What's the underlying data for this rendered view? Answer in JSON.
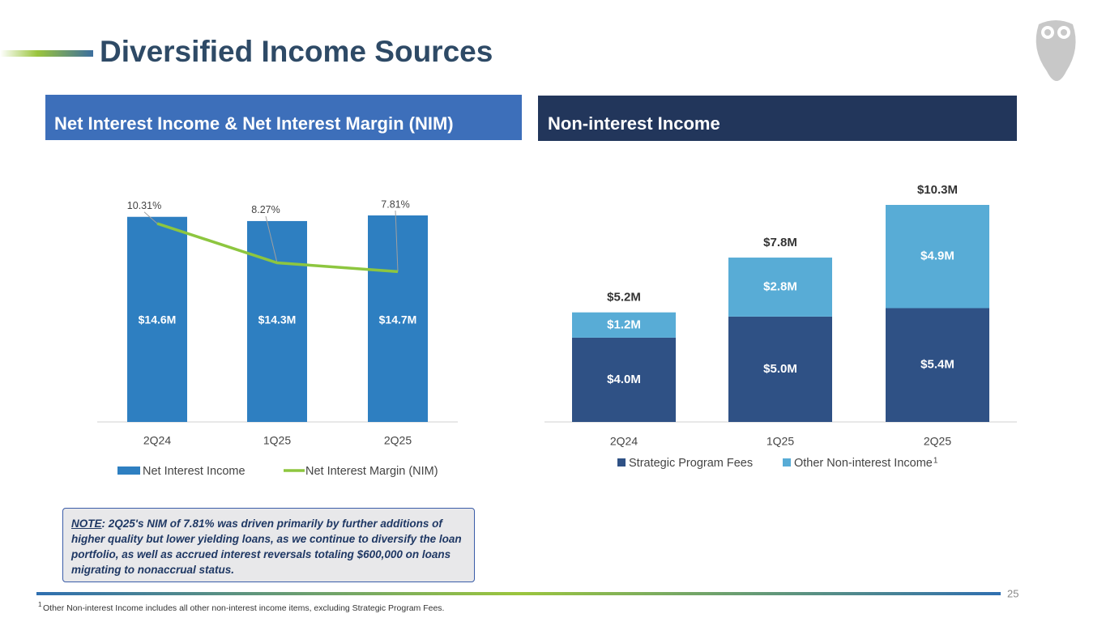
{
  "title": "Diversified Income Sources",
  "panels": [
    "Net Interest Income & Net Interest Margin (NIM)",
    "Non-interest Income"
  ],
  "note": {
    "label": "NOTE",
    "text": ": 2Q25's NIM of 7.81% was driven primarily by further additions of higher quality but lower yielding loans, as we continue to diversify the loan portfolio, as well as accrued interest reversals totaling $600,000 on loans migrating to nonaccrual status."
  },
  "footnote": {
    "marker": "1",
    "text": "Other Non-interest Income includes all other non-interest income items, excluding Strategic Program Fees."
  },
  "page_number": "25",
  "chart_data": [
    {
      "type": "bar_line",
      "categories": [
        "2Q24",
        "1Q25",
        "2Q25"
      ],
      "legend": "bottom",
      "series": [
        {
          "name": "Net Interest Income",
          "type": "bar",
          "color": "#2e7fc1",
          "values": [
            14.6,
            14.3,
            14.7
          ],
          "value_labels": [
            "$14.6M",
            "$14.3M",
            "$14.7M"
          ]
        },
        {
          "name": "Net Interest Margin (NIM)",
          "type": "line",
          "axis": "y2",
          "color": "#8dc63f",
          "values": [
            10.31,
            8.27,
            7.81
          ],
          "value_labels": [
            "10.31%",
            "8.27%",
            "7.81%"
          ]
        }
      ]
    },
    {
      "type": "stacked_bar",
      "categories": [
        "2Q24",
        "1Q25",
        "2Q25"
      ],
      "legend": "bottom",
      "legend_note_marker": "1",
      "series": [
        {
          "name": "Strategic Program Fees",
          "color": "#2f5185",
          "values": [
            4.0,
            5.0,
            5.4
          ],
          "value_labels": [
            "$4.0M",
            "$5.0M",
            "$5.4M"
          ]
        },
        {
          "name": "Other Non-interest Income",
          "color": "#58acd6",
          "values": [
            1.2,
            2.8,
            4.9
          ],
          "value_labels": [
            "$1.2M",
            "$2.8M",
            "$4.9M"
          ]
        }
      ],
      "totals": {
        "values": [
          5.2,
          7.8,
          10.3
        ],
        "value_labels": [
          "$5.2M",
          "$7.8M",
          "$10.3M"
        ]
      }
    }
  ]
}
